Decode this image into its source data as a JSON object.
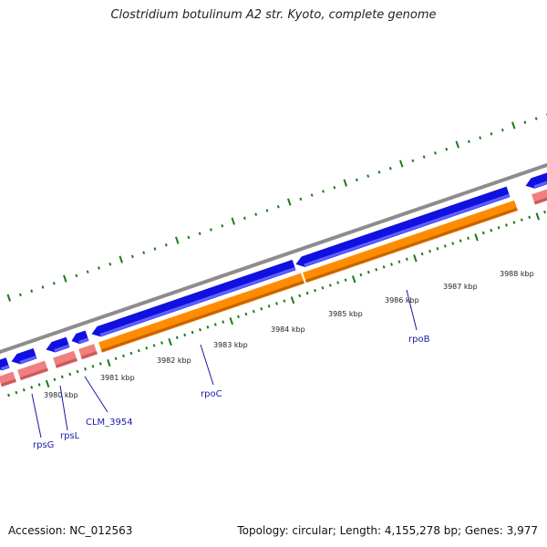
{
  "title": "Clostridium botulinum A2 str. Kyoto, complete genome",
  "footer": {
    "accession": "Accession: NC_012563",
    "summary": "Topology: circular; Length: 4,155,278 bp; Genes: 3,977"
  },
  "colors": {
    "backbone": "#8c8c8c",
    "forward_gene": "#1010e0",
    "forward_gene_light": "#6060ff",
    "reverse_gene": "#ff8c00",
    "reverse_gene_dark": "#c86400",
    "rna_gene": "#f08080",
    "rna_gene_dark": "#c85a5a",
    "ticks": "#1a7a1a",
    "label": "#1a1aa8"
  },
  "scale_labels": [
    "3980 kbp",
    "3981 kbp",
    "3982 kbp",
    "3983 kbp",
    "3984 kbp",
    "3985 kbp",
    "3986 kbp",
    "3987 kbp",
    "3988 kbp"
  ],
  "gene_labels": [
    "rpsG",
    "rpsL",
    "CLM_3954",
    "rpoC",
    "rpoB"
  ]
}
